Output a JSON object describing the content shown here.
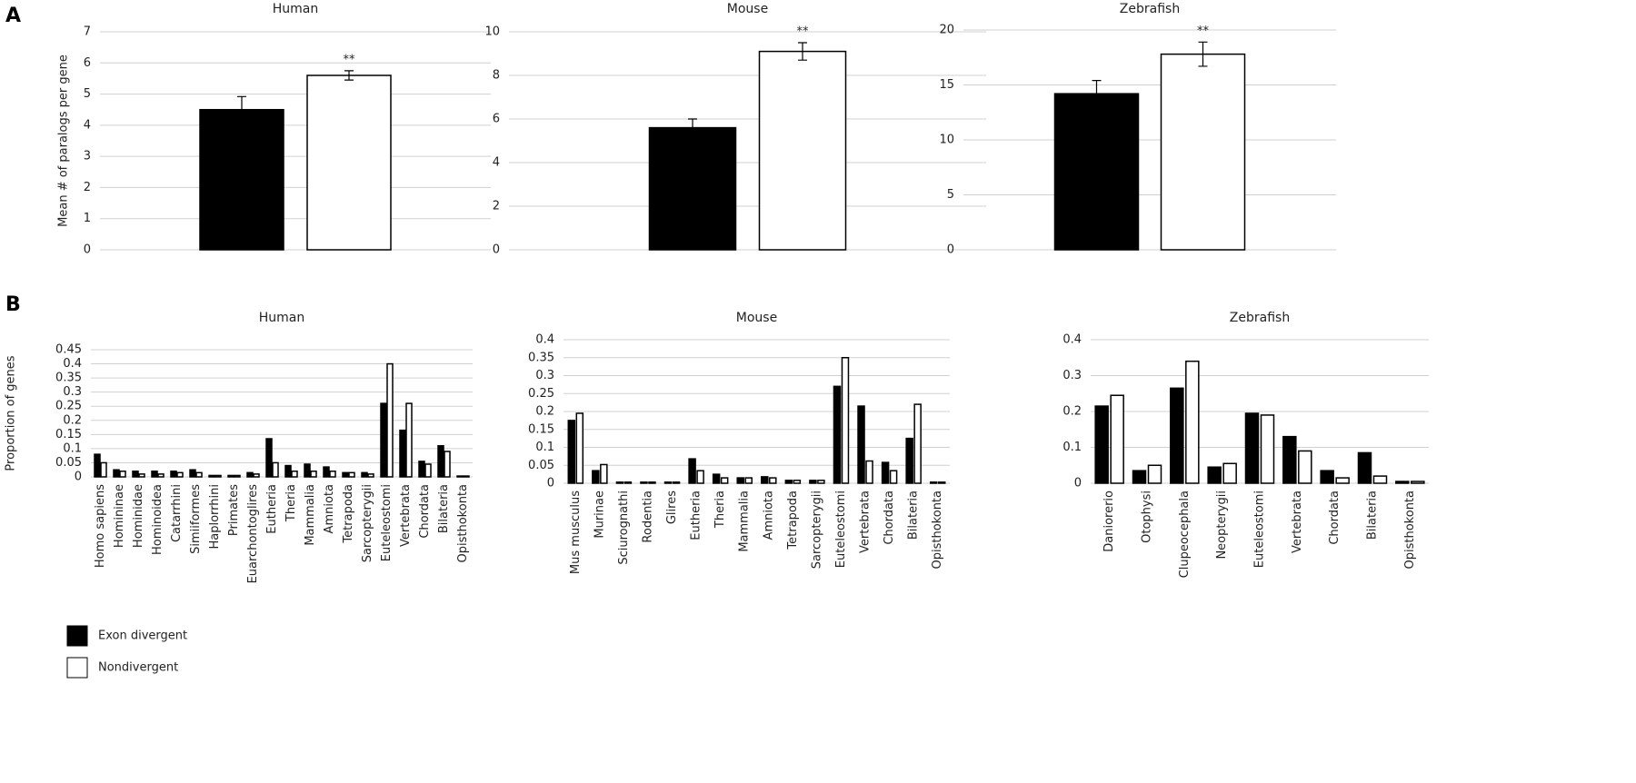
{
  "panel_labels": [
    "A",
    "B"
  ],
  "chart_data": [
    {
      "type": "bar",
      "title": "Human",
      "y_label": "Mean # of paralogs per gene",
      "categories": [
        null
      ],
      "series": [
        {
          "name": "Exon divergent",
          "color": "#000000",
          "values": [
            4.5
          ],
          "errors": [
            0.42
          ]
        },
        {
          "name": "Nondivergent",
          "color": "#ffffff",
          "values": [
            5.6
          ],
          "errors": [
            0.15
          ]
        }
      ],
      "annotation": "**",
      "ylim": [
        0,
        7
      ],
      "yticks": [
        0,
        1,
        2,
        3,
        4,
        5,
        6,
        7
      ],
      "grid": true
    },
    {
      "type": "bar",
      "title": "Mouse",
      "categories": [
        null
      ],
      "series": [
        {
          "name": "Exon divergent",
          "color": "#000000",
          "values": [
            5.6
          ],
          "errors": [
            0.4
          ]
        },
        {
          "name": "Nondivergent",
          "color": "#ffffff",
          "values": [
            9.1
          ],
          "errors": [
            0.4
          ]
        }
      ],
      "annotation": "**",
      "ylim": [
        0,
        10
      ],
      "yticks": [
        0,
        2,
        4,
        6,
        8,
        10
      ],
      "grid": true
    },
    {
      "type": "bar",
      "title": "Zebrafish",
      "categories": [
        null
      ],
      "series": [
        {
          "name": "Exon divergent",
          "color": "#000000",
          "values": [
            14.2
          ],
          "errors": [
            1.2
          ]
        },
        {
          "name": "Nondivergent",
          "color": "#ffffff",
          "values": [
            17.8
          ],
          "errors": [
            1.1
          ]
        }
      ],
      "annotation": "**",
      "ylim": [
        0,
        20
      ],
      "yticks": [
        0,
        5,
        10,
        15,
        20
      ],
      "grid": true
    },
    {
      "type": "bar",
      "title": "Human",
      "y_label": "Proportion of genes",
      "categories": [
        "Homo sapiens",
        "Homininae",
        "Hominidae",
        "Hominoidea",
        "Catarrhini",
        "Simiiformes",
        "Haplorrhini",
        "Primates",
        "Euarchontoglires",
        "Eutheria",
        "Theria",
        "Mammalia",
        "Amniota",
        "Tetrapoda",
        "Sarcopterygii",
        "Euteleostomi",
        "Vertebrata",
        "Chordata",
        "Bilateria",
        "Opisthokonta"
      ],
      "series": [
        {
          "name": "Exon divergent",
          "color": "#000000",
          "values": [
            0.08,
            0.025,
            0.02,
            0.02,
            0.02,
            0.025,
            0.005,
            0.005,
            0.015,
            0.135,
            0.04,
            0.045,
            0.035,
            0.015,
            0.015,
            0.26,
            0.165,
            0.055,
            0.11,
            0.003
          ]
        },
        {
          "name": "Nondivergent",
          "color": "#ffffff",
          "values": [
            0.05,
            0.02,
            0.01,
            0.01,
            0.015,
            0.015,
            0.005,
            0.005,
            0.01,
            0.05,
            0.02,
            0.02,
            0.02,
            0.015,
            0.01,
            0.4,
            0.26,
            0.045,
            0.09,
            0.003
          ]
        }
      ],
      "ylim": [
        0,
        0.45
      ],
      "yticks": [
        0,
        0.05,
        0.1,
        0.15,
        0.2,
        0.25,
        0.3,
        0.35,
        0.4,
        0.45
      ],
      "grid": true
    },
    {
      "type": "bar",
      "title": "Mouse",
      "categories": [
        "Mus musculus",
        "Murinae",
        "Sciurognathi",
        "Rodentia",
        "Glires",
        "Eutheria",
        "Theria",
        "Mammalia",
        "Amniota",
        "Tetrapoda",
        "Sarcopterygii",
        "Euteleostomi",
        "Vertebrata",
        "Chordata",
        "Bilateria",
        "Opisthokonta"
      ],
      "series": [
        {
          "name": "Exon divergent",
          "color": "#000000",
          "values": [
            0.175,
            0.035,
            0.003,
            0.003,
            0.003,
            0.068,
            0.025,
            0.015,
            0.018,
            0.008,
            0.008,
            0.27,
            0.215,
            0.058,
            0.125,
            0.003
          ]
        },
        {
          "name": "Nondivergent",
          "color": "#ffffff",
          "values": [
            0.195,
            0.052,
            0.003,
            0.003,
            0.003,
            0.035,
            0.015,
            0.015,
            0.015,
            0.008,
            0.008,
            0.35,
            0.062,
            0.035,
            0.22,
            0.003
          ]
        }
      ],
      "ylim": [
        0,
        0.4
      ],
      "yticks": [
        0,
        0.05,
        0.1,
        0.15,
        0.2,
        0.25,
        0.3,
        0.35,
        0.4
      ],
      "grid": true
    },
    {
      "type": "bar",
      "title": "Zebrafish",
      "categories": [
        "Daniorerio",
        "Otophysi",
        "Clupeocephala",
        "Neopterygii",
        "Euteleostomi",
        "Vertebrata",
        "Chordata",
        "Bilateria",
        "Opisthokonta"
      ],
      "series": [
        {
          "name": "Exon divergent",
          "color": "#000000",
          "values": [
            0.215,
            0.035,
            0.265,
            0.045,
            0.195,
            0.13,
            0.035,
            0.085,
            0.005
          ]
        },
        {
          "name": "Nondivergent",
          "color": "#ffffff",
          "values": [
            0.245,
            0.05,
            0.34,
            0.055,
            0.19,
            0.09,
            0.015,
            0.02,
            0.005
          ]
        }
      ],
      "ylim": [
        0,
        0.4
      ],
      "yticks": [
        0,
        0.1,
        0.2,
        0.3,
        0.4
      ],
      "grid": true
    }
  ]
}
